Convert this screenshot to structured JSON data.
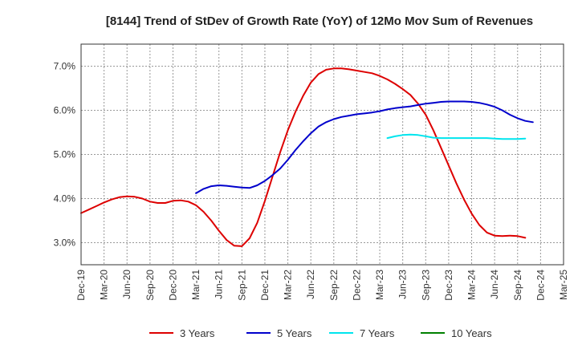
{
  "chart_data": {
    "type": "line",
    "title": "[8144]  Trend of StDev of Growth Rate (YoY) of 12Mo Mov Sum of Revenues",
    "xlabel": "",
    "ylabel": "",
    "ylim": [
      2.5,
      7.5
    ],
    "yticks": [
      3.0,
      4.0,
      5.0,
      6.0,
      7.0
    ],
    "ytick_labels": [
      "3.0%",
      "4.0%",
      "5.0%",
      "6.0%",
      "7.0%"
    ],
    "x_tick_labels": [
      "Dec-19",
      "Mar-20",
      "Jun-20",
      "Sep-20",
      "Dec-20",
      "Mar-21",
      "Jun-21",
      "Sep-21",
      "Dec-21",
      "Mar-22",
      "Jun-22",
      "Sep-22",
      "Dec-22",
      "Mar-23",
      "Jun-23",
      "Sep-23",
      "Dec-23",
      "Mar-24",
      "Jun-24",
      "Sep-24",
      "Dec-24",
      "Mar-25"
    ],
    "grid": true,
    "legend_position": "bottom",
    "series": [
      {
        "name": "3 Years",
        "color": "#dd0000",
        "start_index": 0,
        "values": [
          3.67,
          3.75,
          3.83,
          3.91,
          3.98,
          4.03,
          4.05,
          4.04,
          4.0,
          3.93,
          3.9,
          3.9,
          3.95,
          3.96,
          3.93,
          3.85,
          3.7,
          3.5,
          3.27,
          3.06,
          2.93,
          2.92,
          3.1,
          3.45,
          3.95,
          4.5,
          5.05,
          5.55,
          5.97,
          6.33,
          6.63,
          6.82,
          6.92,
          6.95,
          6.95,
          6.93,
          6.9,
          6.87,
          6.84,
          6.78,
          6.7,
          6.6,
          6.48,
          6.35,
          6.15,
          5.9,
          5.55,
          5.15,
          4.75,
          4.35,
          3.98,
          3.66,
          3.4,
          3.23,
          3.16,
          3.15,
          3.16,
          3.15,
          3.11
        ]
      },
      {
        "name": "5 Years",
        "color": "#0000cc",
        "start_index": 15,
        "values": [
          4.12,
          4.22,
          4.28,
          4.3,
          4.29,
          4.27,
          4.25,
          4.24,
          4.3,
          4.4,
          4.53,
          4.68,
          4.88,
          5.1,
          5.3,
          5.48,
          5.63,
          5.73,
          5.8,
          5.85,
          5.88,
          5.91,
          5.93,
          5.95,
          5.98,
          6.02,
          6.05,
          6.07,
          6.09,
          6.12,
          6.15,
          6.17,
          6.19,
          6.2,
          6.2,
          6.2,
          6.19,
          6.17,
          6.13,
          6.08,
          6.0,
          5.9,
          5.82,
          5.76,
          5.73
        ]
      },
      {
        "name": "7 Years",
        "color": "#00e5ee",
        "start_index": 40,
        "values": [
          5.37,
          5.41,
          5.44,
          5.45,
          5.44,
          5.41,
          5.38,
          5.37,
          5.37,
          5.37,
          5.37,
          5.37,
          5.37,
          5.37,
          5.36,
          5.35,
          5.35,
          5.35,
          5.36
        ]
      },
      {
        "name": "10 Years",
        "color": "#008000",
        "start_index": 0,
        "values": []
      }
    ]
  }
}
